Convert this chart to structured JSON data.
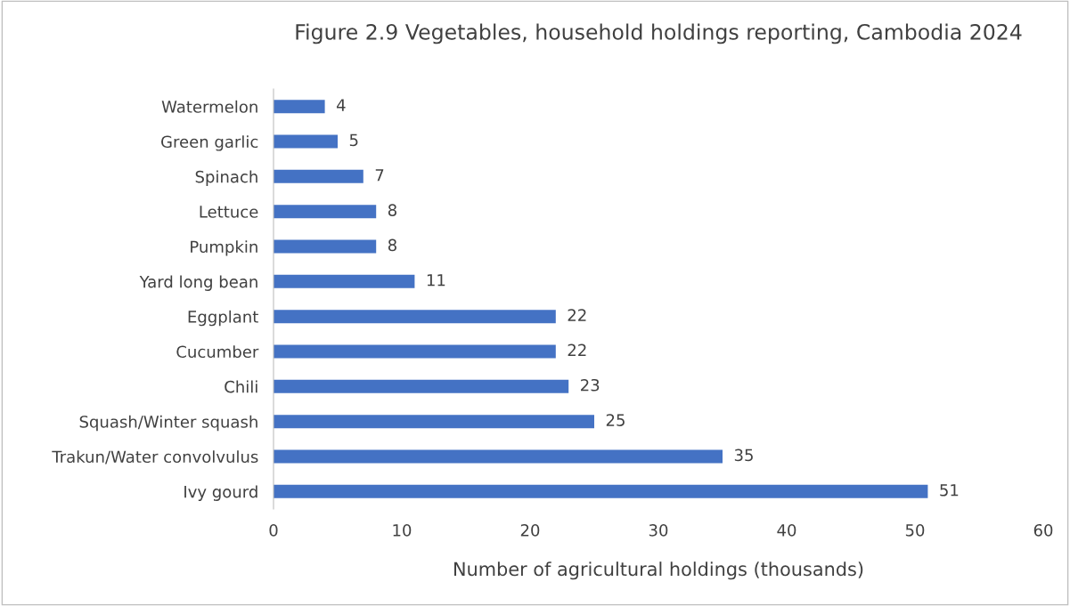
{
  "chart_data": {
    "type": "bar",
    "orientation": "horizontal",
    "title": "Figure 2.9 Vegetables, household holdings reporting, Cambodia 2024",
    "xlabel": "Number of agricultural holdings (thousands)",
    "categories": [
      "Watermelon",
      "Green garlic",
      "Spinach",
      "Lettuce",
      "Pumpkin",
      "Yard long bean",
      "Eggplant",
      "Cucumber",
      "Chili",
      "Squash/Winter squash",
      "Trakun/Water convolvulus",
      "Ivy gourd"
    ],
    "values": [
      4,
      5,
      7,
      8,
      8,
      11,
      22,
      22,
      23,
      25,
      35,
      51
    ],
    "color": "#4472c4",
    "xlim": [
      0,
      60
    ],
    "xticks": [
      0,
      10,
      20,
      30,
      40,
      50,
      60
    ],
    "data_labels": true,
    "grid": false,
    "legend": false
  }
}
